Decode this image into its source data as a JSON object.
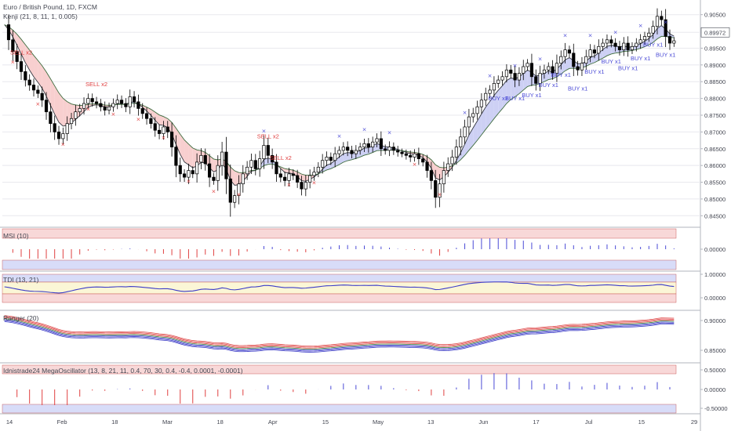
{
  "header": {
    "title": "Euro / British Pound, 1D, FXCM",
    "indicator": "Kenji (21, 8, 11, 1, 0.005)"
  },
  "colors": {
    "up_candle": "#ffffff",
    "down_candle": "#000000",
    "sell_fill": "#f8cfcf",
    "buy_fill": "#cdd0f4",
    "sell_text": "#e04040",
    "buy_text": "#4a4ad6",
    "grid": "#e8e8ee",
    "pos_band": "#f8d8d8",
    "neg_band": "#d8dcf8"
  },
  "panels": [
    {
      "label": "MSI (10)",
      "ticks": [
        "0.00000"
      ]
    },
    {
      "label": "TDI (13, 21)",
      "ticks": [
        "1.00000",
        "0.00000"
      ]
    },
    {
      "label": "Ranger (20)",
      "ticks": [
        "0.90000",
        "0.85000"
      ]
    },
    {
      "label": "Idnistrade24 MegaOscillator (13, 8, 21, 11, 0.4, 70, 30, 0.4, -0.4, 0.0001, -0.0001)",
      "ticks": [
        "0.50000",
        "0.00000",
        "-0.50000"
      ]
    }
  ],
  "signals": [
    {
      "text": "SELL x2",
      "type": "sell"
    },
    {
      "text": "SELL x2",
      "type": "sell"
    },
    {
      "text": "SELL x2",
      "type": "sell"
    },
    {
      "text": "SELL x2",
      "type": "sell"
    },
    {
      "text": "BUY x1",
      "type": "buy"
    },
    {
      "text": "BUY x1",
      "type": "buy"
    },
    {
      "text": "BUY x1",
      "type": "buy"
    },
    {
      "text": "BUY x1",
      "type": "buy"
    },
    {
      "text": "BUY x1",
      "type": "buy"
    },
    {
      "text": "BUY x1",
      "type": "buy"
    },
    {
      "text": "BUY x1",
      "type": "buy"
    },
    {
      "text": "BUY x1",
      "type": "buy"
    },
    {
      "text": "BUY x1",
      "type": "buy"
    },
    {
      "text": "BUY x1",
      "type": "buy"
    },
    {
      "text": "BUY x1",
      "type": "buy"
    },
    {
      "text": "BUY x1",
      "type": "buy"
    }
  ],
  "chart_data": {
    "type": "candlestick",
    "symbol": "Euro / British Pound",
    "timeframe": "1D",
    "y_ticks": [
      "0.90500",
      "0.89972",
      "0.89500",
      "0.89000",
      "0.88500",
      "0.88000",
      "0.87500",
      "0.87000",
      "0.86500",
      "0.86000",
      "0.85500",
      "0.85000",
      "0.84500"
    ],
    "ylim": [
      0.8425,
      0.9075
    ],
    "current_price": "0.89972",
    "x_ticks": [
      "14",
      "Feb",
      "18",
      "Mar",
      "18",
      "Apr",
      "15",
      "May",
      "13",
      "Jun",
      "17",
      "Jul",
      "15",
      "29"
    ],
    "closes": [
      0.902,
      0.8975,
      0.894,
      0.891,
      0.888,
      0.8855,
      0.884,
      0.8825,
      0.8815,
      0.8795,
      0.876,
      0.8725,
      0.87,
      0.868,
      0.8695,
      0.8725,
      0.874,
      0.876,
      0.877,
      0.8785,
      0.88,
      0.879,
      0.8785,
      0.8775,
      0.8765,
      0.8775,
      0.8785,
      0.8795,
      0.8785,
      0.8775,
      0.8805,
      0.879,
      0.877,
      0.8755,
      0.874,
      0.8725,
      0.8705,
      0.8695,
      0.8715,
      0.87,
      0.8655,
      0.86,
      0.8575,
      0.8565,
      0.8585,
      0.8575,
      0.861,
      0.863,
      0.8605,
      0.8565,
      0.8555,
      0.86,
      0.864,
      0.856,
      0.849,
      0.851,
      0.8545,
      0.8575,
      0.8595,
      0.8615,
      0.859,
      0.862,
      0.866,
      0.863,
      0.861,
      0.8575,
      0.8565,
      0.8555,
      0.8575,
      0.857,
      0.855,
      0.853,
      0.855,
      0.857,
      0.858,
      0.8595,
      0.8615,
      0.8625,
      0.8615,
      0.8635,
      0.8645,
      0.8655,
      0.8645,
      0.8635,
      0.8645,
      0.8655,
      0.8665,
      0.8655,
      0.867,
      0.868,
      0.865,
      0.8645,
      0.8655,
      0.8645,
      0.864,
      0.8635,
      0.863,
      0.8625,
      0.8635,
      0.862,
      0.861,
      0.8585,
      0.8555,
      0.8505,
      0.8545,
      0.8585,
      0.8605,
      0.8625,
      0.8655,
      0.8685,
      0.8715,
      0.8745,
      0.8755,
      0.8775,
      0.8795,
      0.8815,
      0.8825,
      0.8845,
      0.8855,
      0.8865,
      0.8885,
      0.8875,
      0.8855,
      0.8875,
      0.8895,
      0.8905,
      0.8865,
      0.8845,
      0.8875,
      0.8885,
      0.8895,
      0.8875,
      0.8905,
      0.8925,
      0.8945,
      0.8935,
      0.8895,
      0.8885,
      0.8905,
      0.8925,
      0.8945,
      0.8935,
      0.8955,
      0.8965,
      0.8975,
      0.8965,
      0.8955,
      0.8945,
      0.8965,
      0.8945,
      0.8955,
      0.8965,
      0.8975,
      0.8985,
      0.8995,
      0.9015,
      0.9045,
      0.9035,
      0.8985,
      0.8965,
      0.8972
    ]
  }
}
